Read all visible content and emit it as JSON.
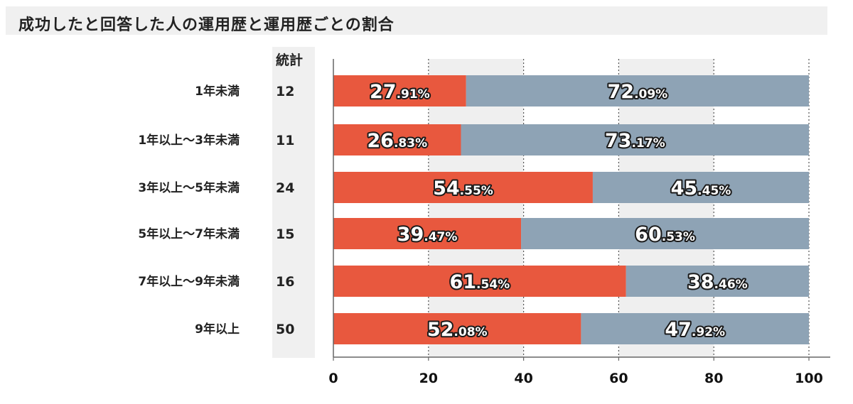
{
  "title": "成功したと回答した人の運用歴と運用歴ごとの割合",
  "colors": {
    "success": "#e8583e",
    "other": "#8ea3b5",
    "band": "#efefef",
    "axis": "#666666",
    "count_bg": "#f0f0f0"
  },
  "chart_data": {
    "type": "bar",
    "orientation": "horizontal",
    "stacked": true,
    "count_header": "統計",
    "categories": [
      "1年未満",
      "1年以上～3年未満",
      "3年以上～5年未満",
      "5年以上～7年未満",
      "7年以上～9年未満",
      "9年以上"
    ],
    "counts": [
      "12",
      "11",
      "24",
      "15",
      "16",
      "50"
    ],
    "series": [
      {
        "values": [
          27.91,
          26.83,
          54.55,
          39.47,
          61.54,
          52.08
        ],
        "labels": [
          [
            "27",
            ".91%"
          ],
          [
            "26",
            ".83%"
          ],
          [
            "54",
            ".55%"
          ],
          [
            "39",
            ".47%"
          ],
          [
            "61",
            ".54%"
          ],
          [
            "52",
            ".08%"
          ]
        ]
      },
      {
        "values": [
          72.09,
          73.17,
          45.45,
          60.53,
          38.46,
          47.92
        ],
        "labels": [
          [
            "72",
            ".09%"
          ],
          [
            "73",
            ".17%"
          ],
          [
            "45",
            ".45%"
          ],
          [
            "60",
            ".53%"
          ],
          [
            "38",
            ".46%"
          ],
          [
            "47",
            ".92%"
          ]
        ]
      }
    ],
    "xlim": [
      0,
      100
    ],
    "xticks": [
      "0",
      "20",
      "40",
      "60",
      "80",
      "100"
    ],
    "grid": "dotted vertical lines",
    "legend": "none"
  }
}
